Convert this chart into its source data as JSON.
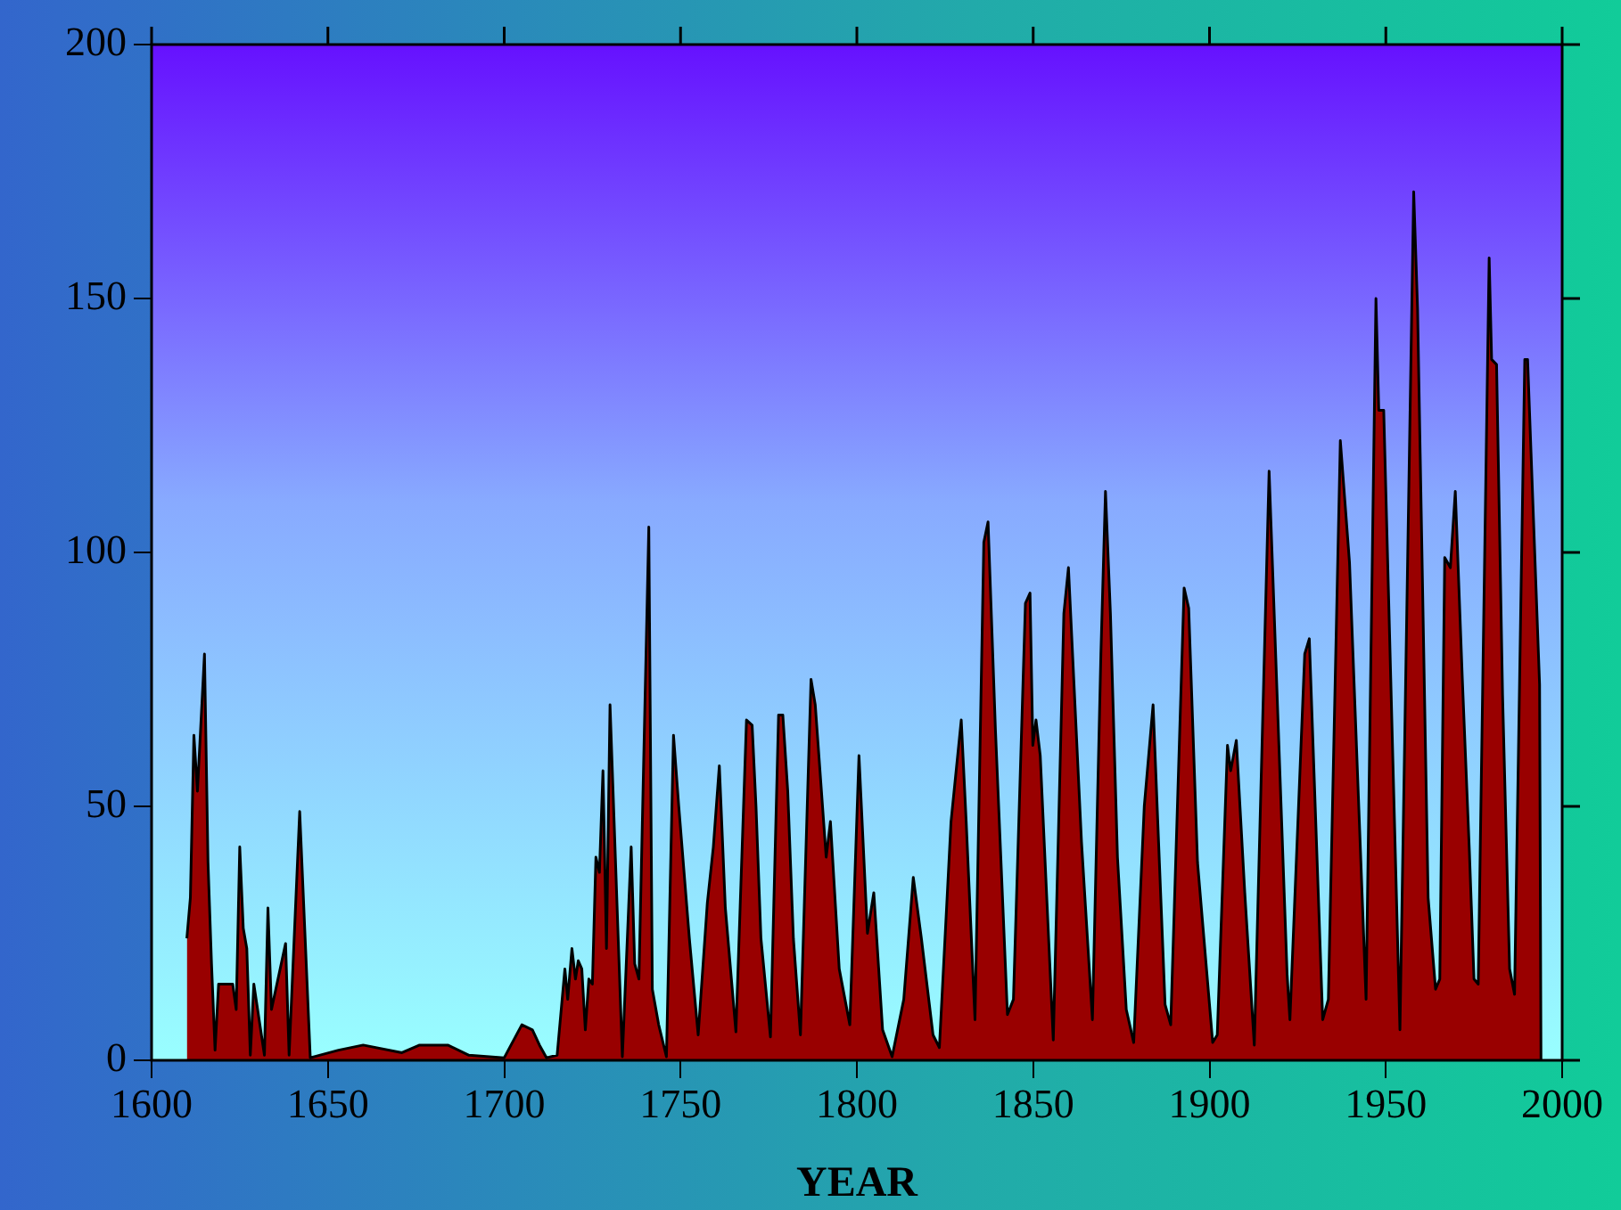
{
  "chart_data": {
    "type": "area",
    "xlabel": "YEAR",
    "xlim": [
      1600,
      2000
    ],
    "xticks": [
      1600,
      1650,
      1700,
      1750,
      1800,
      1850,
      1900,
      1950,
      2000
    ],
    "ylim": [
      0,
      200
    ],
    "yticks": [
      0,
      50,
      100,
      150,
      200
    ],
    "grid": false,
    "legend": false,
    "marker": "none",
    "series": [
      {
        "color": "#990000",
        "x": [
          1610,
          1611,
          1612,
          1613,
          1615,
          1616,
          1617,
          1618,
          1619,
          1623,
          1624,
          1625,
          1626,
          1627,
          1628,
          1629,
          1632,
          1633,
          1634,
          1638,
          1639,
          1642,
          1645,
          1653,
          1660,
          1671,
          1676,
          1684,
          1690,
          1700,
          1705,
          1708,
          1710,
          1712,
          1715,
          1717.2,
          1718,
          1719.2,
          1720.2,
          1721,
          1722,
          1723,
          1724,
          1725,
          1726,
          1727,
          1728,
          1729,
          1730,
          1733.5,
          1736,
          1737,
          1738.2,
          1741,
          1742,
          1743.8,
          1746,
          1748,
          1749.5,
          1752.5,
          1755,
          1757.6,
          1759.3,
          1761,
          1762.7,
          1765.7,
          1768.7,
          1770.3,
          1771.4,
          1772.8,
          1775.5,
          1777.8,
          1779,
          1780.4,
          1782,
          1784,
          1787,
          1788.2,
          1791.3,
          1792.5,
          1795,
          1798,
          1800.6,
          1803,
          1804.8,
          1807.3,
          1810,
          1813.3,
          1816,
          1818.3,
          1821.6,
          1823.4,
          1826.7,
          1829.6,
          1831,
          1833.5,
          1836,
          1837.2,
          1839.3,
          1842.7,
          1844.4,
          1847.8,
          1849.1,
          1849.9,
          1850.8,
          1852,
          1855.7,
          1858.7,
          1860,
          1863.7,
          1866.8,
          1869.2,
          1870.5,
          1871.9,
          1873.9,
          1876.4,
          1878.5,
          1881.5,
          1884,
          1887.4,
          1889,
          1892.8,
          1894.1,
          1896.6,
          1900.9,
          1902.2,
          1905.1,
          1906,
          1907.6,
          1910,
          1912.7,
          1916.9,
          1922,
          1922.8,
          1927,
          1928.3,
          1932.1,
          1933.7,
          1937.1,
          1939.7,
          1944.4,
          1947.2,
          1948,
          1949.4,
          1954,
          1957.9,
          1959,
          1962,
          1964.1,
          1965.3,
          1966.7,
          1968.3,
          1969.7,
          1971.7,
          1973.7,
          1975,
          1976.2,
          1979.3,
          1980,
          1981.4,
          1983.1,
          1985.1,
          1986.5,
          1989.4,
          1990.2,
          1993.6,
          1994
        ],
        "values": [
          24,
          32,
          64,
          53,
          80,
          39,
          19,
          2,
          15,
          15,
          10,
          42,
          26,
          22,
          1,
          15,
          1,
          30,
          10,
          23,
          1,
          49,
          0.5,
          2,
          3,
          1.5,
          3,
          3,
          1,
          0.5,
          7,
          6,
          3,
          0.5,
          1,
          18,
          12,
          22,
          16,
          19.6,
          18,
          6,
          16,
          15,
          40,
          37,
          57,
          22,
          70,
          0.7,
          42,
          19,
          16,
          105,
          14,
          7,
          0.7,
          64,
          50,
          24,
          5,
          31,
          42,
          58,
          30,
          5.6,
          67,
          66,
          50,
          24,
          4.6,
          68,
          68,
          53,
          24,
          5,
          75,
          70,
          40,
          47,
          18,
          7,
          60,
          25,
          33,
          6,
          0.7,
          12,
          36,
          24,
          5,
          2.5,
          47,
          67,
          47,
          8,
          102,
          106,
          65,
          9,
          12,
          90,
          92,
          62,
          67,
          60,
          4,
          88,
          97,
          43,
          8,
          80,
          112,
          88,
          40,
          10,
          3.5,
          50,
          70,
          11,
          7,
          93,
          89,
          39,
          3.5,
          5,
          62,
          57,
          63,
          33,
          3,
          116,
          17,
          8,
          80,
          83,
          8,
          12,
          122,
          98,
          12,
          150,
          128,
          128,
          6,
          171,
          148,
          32,
          14,
          16,
          99,
          97,
          112,
          75,
          41,
          16,
          15,
          158,
          138,
          137,
          72,
          18,
          13,
          138,
          138,
          74,
          0
        ]
      }
    ]
  }
}
